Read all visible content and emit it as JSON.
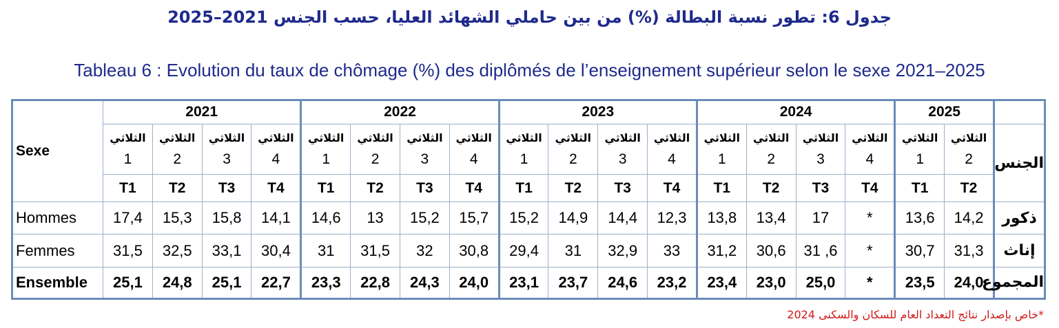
{
  "title_ar": "جدول 6: تطور نسبة البطالة (%) من بين حاملي الشهائد العليا، حسب الجنس 2021–2025",
  "title_fr": "Tableau 6 : Evolution du taux de chômage (%) des diplômés de l’enseignement supérieur selon le sexe 2021–2025",
  "header": {
    "sexe_fr": "Sexe",
    "sexe_ar": "الجنس",
    "years": [
      "2021",
      "2022",
      "2023",
      "2024",
      "2025"
    ],
    "quarter_ar": "الثلاثي",
    "quarter_nums": [
      "1",
      "2",
      "3",
      "4",
      "1",
      "2",
      "3",
      "4",
      "1",
      "2",
      "3",
      "4",
      "1",
      "2",
      "3",
      "4",
      "1",
      "2"
    ],
    "t_labels": [
      "T1",
      "T2",
      "T3",
      "T4",
      "T1",
      "T2",
      "T3",
      "T4",
      "T1",
      "T2",
      "T3",
      "T4",
      "T1",
      "T2",
      "T3",
      "T4",
      "T1",
      "T2"
    ]
  },
  "rows": [
    {
      "label_fr": "Hommes",
      "label_ar": "ذكور",
      "values": [
        "17,4",
        "15,3",
        "15,8",
        "14,1",
        "14,6",
        "13",
        "15,2",
        "15,7",
        "15,2",
        "14,9",
        "14,4",
        "12,3",
        "13,8",
        "13,4",
        "17",
        "*",
        "13,6",
        "14,2"
      ]
    },
    {
      "label_fr": "Femmes",
      "label_ar": "إناث",
      "values": [
        "31,5",
        "32,5",
        "33,1",
        "30,4",
        "31",
        "31,5",
        "32",
        "30,8",
        "29,4",
        "31",
        "32,9",
        "33",
        "31,2",
        "30,6",
        "31 ,6",
        "*",
        "30,7",
        "31,3"
      ]
    },
    {
      "label_fr": "Ensemble",
      "label_ar": "المجموع",
      "values": [
        "25,1",
        "24,8",
        "25,1",
        "22,7",
        "23,3",
        "22,8",
        "24,3",
        "24,0",
        "23,1",
        "23,7",
        "24,6",
        "23,2",
        "23,4",
        "23,0",
        "25,0",
        "*",
        "23,5",
        "24,0"
      ]
    }
  ],
  "footnote": "*خاص بإصدار نتائج التعداد العام للسكان والسكنى 2024"
}
